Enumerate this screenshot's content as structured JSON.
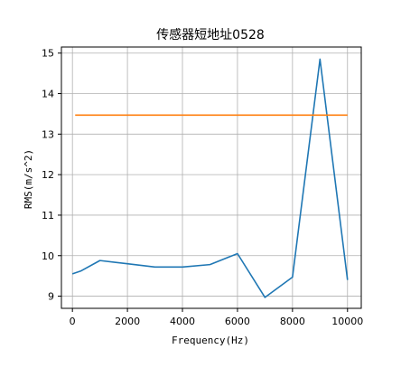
{
  "chart_data": {
    "type": "line",
    "title": "传感器短地址0528",
    "xlabel": "Frequency(Hz)",
    "ylabel": "RMS(m/s^2)",
    "xlim": [
      -400,
      10500
    ],
    "ylim": [
      8.7,
      15.15
    ],
    "xticks": [
      0,
      2000,
      4000,
      6000,
      8000,
      10000
    ],
    "yticks": [
      9,
      10,
      11,
      12,
      13,
      14,
      15
    ],
    "grid": true,
    "series": [
      {
        "color": "#1f77b4",
        "x": [
          0,
          300,
          1000,
          2000,
          3000,
          4000,
          5000,
          6000,
          7000,
          8000,
          9000,
          10000
        ],
        "y": [
          9.55,
          9.62,
          9.88,
          9.8,
          9.72,
          9.72,
          9.78,
          10.05,
          8.97,
          9.47,
          14.85,
          9.4
        ]
      },
      {
        "color": "#ff7f0e",
        "x": [
          100,
          10000
        ],
        "y": [
          13.47,
          13.47
        ]
      }
    ]
  }
}
